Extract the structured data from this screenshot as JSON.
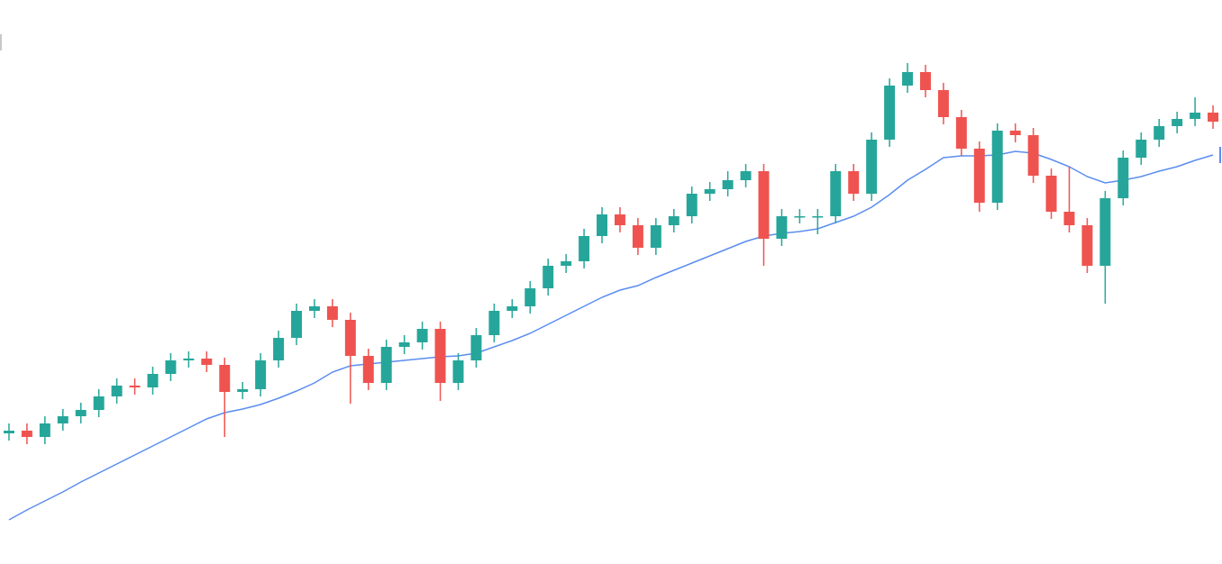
{
  "chart_data": {
    "type": "candlestick",
    "up_color": "#26a69a",
    "down_color": "#ef5350",
    "ma_color": "#5b8def",
    "ylim": [
      0,
      626
    ],
    "open": [
      145,
      148,
      141,
      156,
      164,
      171,
      186,
      198,
      196,
      211,
      226,
      228,
      221,
      191,
      194,
      226,
      251,
      281,
      286,
      271,
      231,
      201,
      241,
      246,
      261,
      201,
      226,
      254,
      281,
      286,
      306,
      331,
      336,
      364,
      388,
      376,
      351,
      376,
      386,
      411,
      416,
      426,
      436,
      361,
      386,
      386,
      386,
      436,
      411,
      471,
      531,
      546,
      526,
      496,
      461,
      401,
      481,
      476,
      431,
      391,
      376,
      331,
      406,
      451,
      471,
      486,
      494,
      501
    ],
    "high": [
      156,
      156,
      164,
      172,
      179,
      194,
      206,
      206,
      219,
      234,
      236,
      236,
      229,
      202,
      234,
      259,
      289,
      294,
      294,
      279,
      239,
      249,
      254,
      269,
      269,
      234,
      262,
      289,
      294,
      314,
      339,
      344,
      372,
      396,
      396,
      384,
      384,
      394,
      419,
      424,
      436,
      444,
      444,
      394,
      394,
      394,
      444,
      444,
      479,
      539,
      556,
      554,
      534,
      504,
      469,
      489,
      489,
      484,
      439,
      441,
      384,
      414,
      459,
      479,
      494,
      502,
      518,
      509
    ],
    "low": [
      137,
      133,
      133,
      148,
      156,
      163,
      178,
      188,
      188,
      203,
      218,
      213,
      141,
      183,
      186,
      218,
      243,
      273,
      263,
      178,
      193,
      193,
      233,
      238,
      181,
      193,
      218,
      246,
      273,
      278,
      298,
      323,
      328,
      356,
      368,
      343,
      343,
      368,
      378,
      403,
      408,
      418,
      331,
      353,
      378,
      366,
      378,
      403,
      403,
      463,
      523,
      518,
      488,
      453,
      391,
      393,
      468,
      423,
      383,
      368,
      323,
      289,
      398,
      443,
      463,
      478,
      486,
      483
    ],
    "close": [
      148,
      141,
      156,
      164,
      171,
      186,
      198,
      196,
      211,
      226,
      228,
      221,
      191,
      194,
      226,
      251,
      281,
      286,
      271,
      231,
      201,
      241,
      246,
      261,
      201,
      226,
      254,
      281,
      286,
      306,
      331,
      336,
      364,
      388,
      376,
      351,
      376,
      386,
      411,
      416,
      426,
      436,
      361,
      386,
      386,
      386,
      436,
      411,
      471,
      531,
      546,
      526,
      496,
      461,
      401,
      481,
      476,
      431,
      391,
      376,
      331,
      406,
      451,
      471,
      486,
      494,
      501,
      491
    ],
    "ma": [
      49,
      60,
      70,
      80,
      91,
      101,
      111,
      121,
      131,
      141,
      151,
      161,
      168,
      172,
      177,
      184,
      192,
      201,
      213,
      220,
      222,
      224,
      226,
      228,
      230,
      231,
      234,
      241,
      248,
      256,
      266,
      276,
      286,
      296,
      304,
      309,
      318,
      326,
      334,
      342,
      350,
      358,
      364,
      367,
      369,
      372,
      379,
      386,
      396,
      410,
      426,
      438,
      451,
      453,
      453,
      454,
      458,
      456,
      449,
      441,
      430,
      423,
      426,
      430,
      436,
      441,
      448,
      454
    ]
  }
}
